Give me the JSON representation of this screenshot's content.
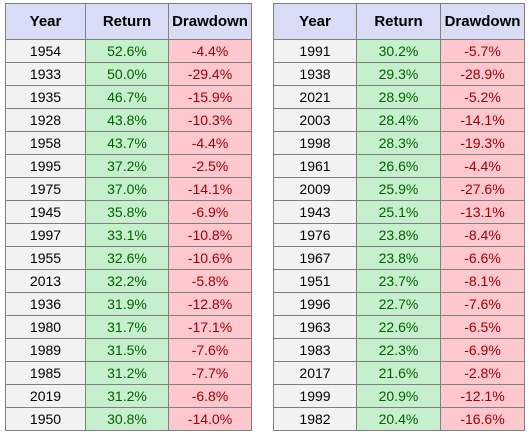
{
  "headers": {
    "year": "Year",
    "return": "Return",
    "drawdown": "Drawdown"
  },
  "left_table": [
    {
      "year": "1954",
      "return": "52.6%",
      "drawdown": "-4.4%"
    },
    {
      "year": "1933",
      "return": "50.0%",
      "drawdown": "-29.4%"
    },
    {
      "year": "1935",
      "return": "46.7%",
      "drawdown": "-15.9%"
    },
    {
      "year": "1928",
      "return": "43.8%",
      "drawdown": "-10.3%"
    },
    {
      "year": "1958",
      "return": "43.7%",
      "drawdown": "-4.4%"
    },
    {
      "year": "1995",
      "return": "37.2%",
      "drawdown": "-2.5%"
    },
    {
      "year": "1975",
      "return": "37.0%",
      "drawdown": "-14.1%"
    },
    {
      "year": "1945",
      "return": "35.8%",
      "drawdown": "-6.9%"
    },
    {
      "year": "1997",
      "return": "33.1%",
      "drawdown": "-10.8%"
    },
    {
      "year": "1955",
      "return": "32.6%",
      "drawdown": "-10.6%"
    },
    {
      "year": "2013",
      "return": "32.2%",
      "drawdown": "-5.8%"
    },
    {
      "year": "1936",
      "return": "31.9%",
      "drawdown": "-12.8%"
    },
    {
      "year": "1980",
      "return": "31.7%",
      "drawdown": "-17.1%"
    },
    {
      "year": "1989",
      "return": "31.5%",
      "drawdown": "-7.6%"
    },
    {
      "year": "1985",
      "return": "31.2%",
      "drawdown": "-7.7%"
    },
    {
      "year": "2019",
      "return": "31.2%",
      "drawdown": "-6.8%"
    },
    {
      "year": "1950",
      "return": "30.8%",
      "drawdown": "-14.0%"
    }
  ],
  "right_table": [
    {
      "year": "1991",
      "return": "30.2%",
      "drawdown": "-5.7%"
    },
    {
      "year": "1938",
      "return": "29.3%",
      "drawdown": "-28.9%"
    },
    {
      "year": "2021",
      "return": "28.9%",
      "drawdown": "-5.2%"
    },
    {
      "year": "2003",
      "return": "28.4%",
      "drawdown": "-14.1%"
    },
    {
      "year": "1998",
      "return": "28.3%",
      "drawdown": "-19.3%"
    },
    {
      "year": "1961",
      "return": "26.6%",
      "drawdown": "-4.4%"
    },
    {
      "year": "2009",
      "return": "25.9%",
      "drawdown": "-27.6%"
    },
    {
      "year": "1943",
      "return": "25.1%",
      "drawdown": "-13.1%"
    },
    {
      "year": "1976",
      "return": "23.8%",
      "drawdown": "-8.4%"
    },
    {
      "year": "1967",
      "return": "23.8%",
      "drawdown": "-6.6%"
    },
    {
      "year": "1951",
      "return": "23.7%",
      "drawdown": "-8.1%"
    },
    {
      "year": "1996",
      "return": "22.7%",
      "drawdown": "-7.6%"
    },
    {
      "year": "1963",
      "return": "22.6%",
      "drawdown": "-6.5%"
    },
    {
      "year": "1983",
      "return": "22.3%",
      "drawdown": "-6.9%"
    },
    {
      "year": "2017",
      "return": "21.6%",
      "drawdown": "-2.8%"
    },
    {
      "year": "1999",
      "return": "20.9%",
      "drawdown": "-12.1%"
    },
    {
      "year": "1982",
      "return": "20.4%",
      "drawdown": "-16.6%"
    }
  ],
  "colors": {
    "header_bg": "#d9dcf5",
    "year_bg": "#f2f2f2",
    "return_bg": "#c6efce",
    "return_text": "#006100",
    "drawdown_bg": "#ffc7ce",
    "drawdown_text": "#9c0006",
    "border": "#7f7f7f"
  }
}
